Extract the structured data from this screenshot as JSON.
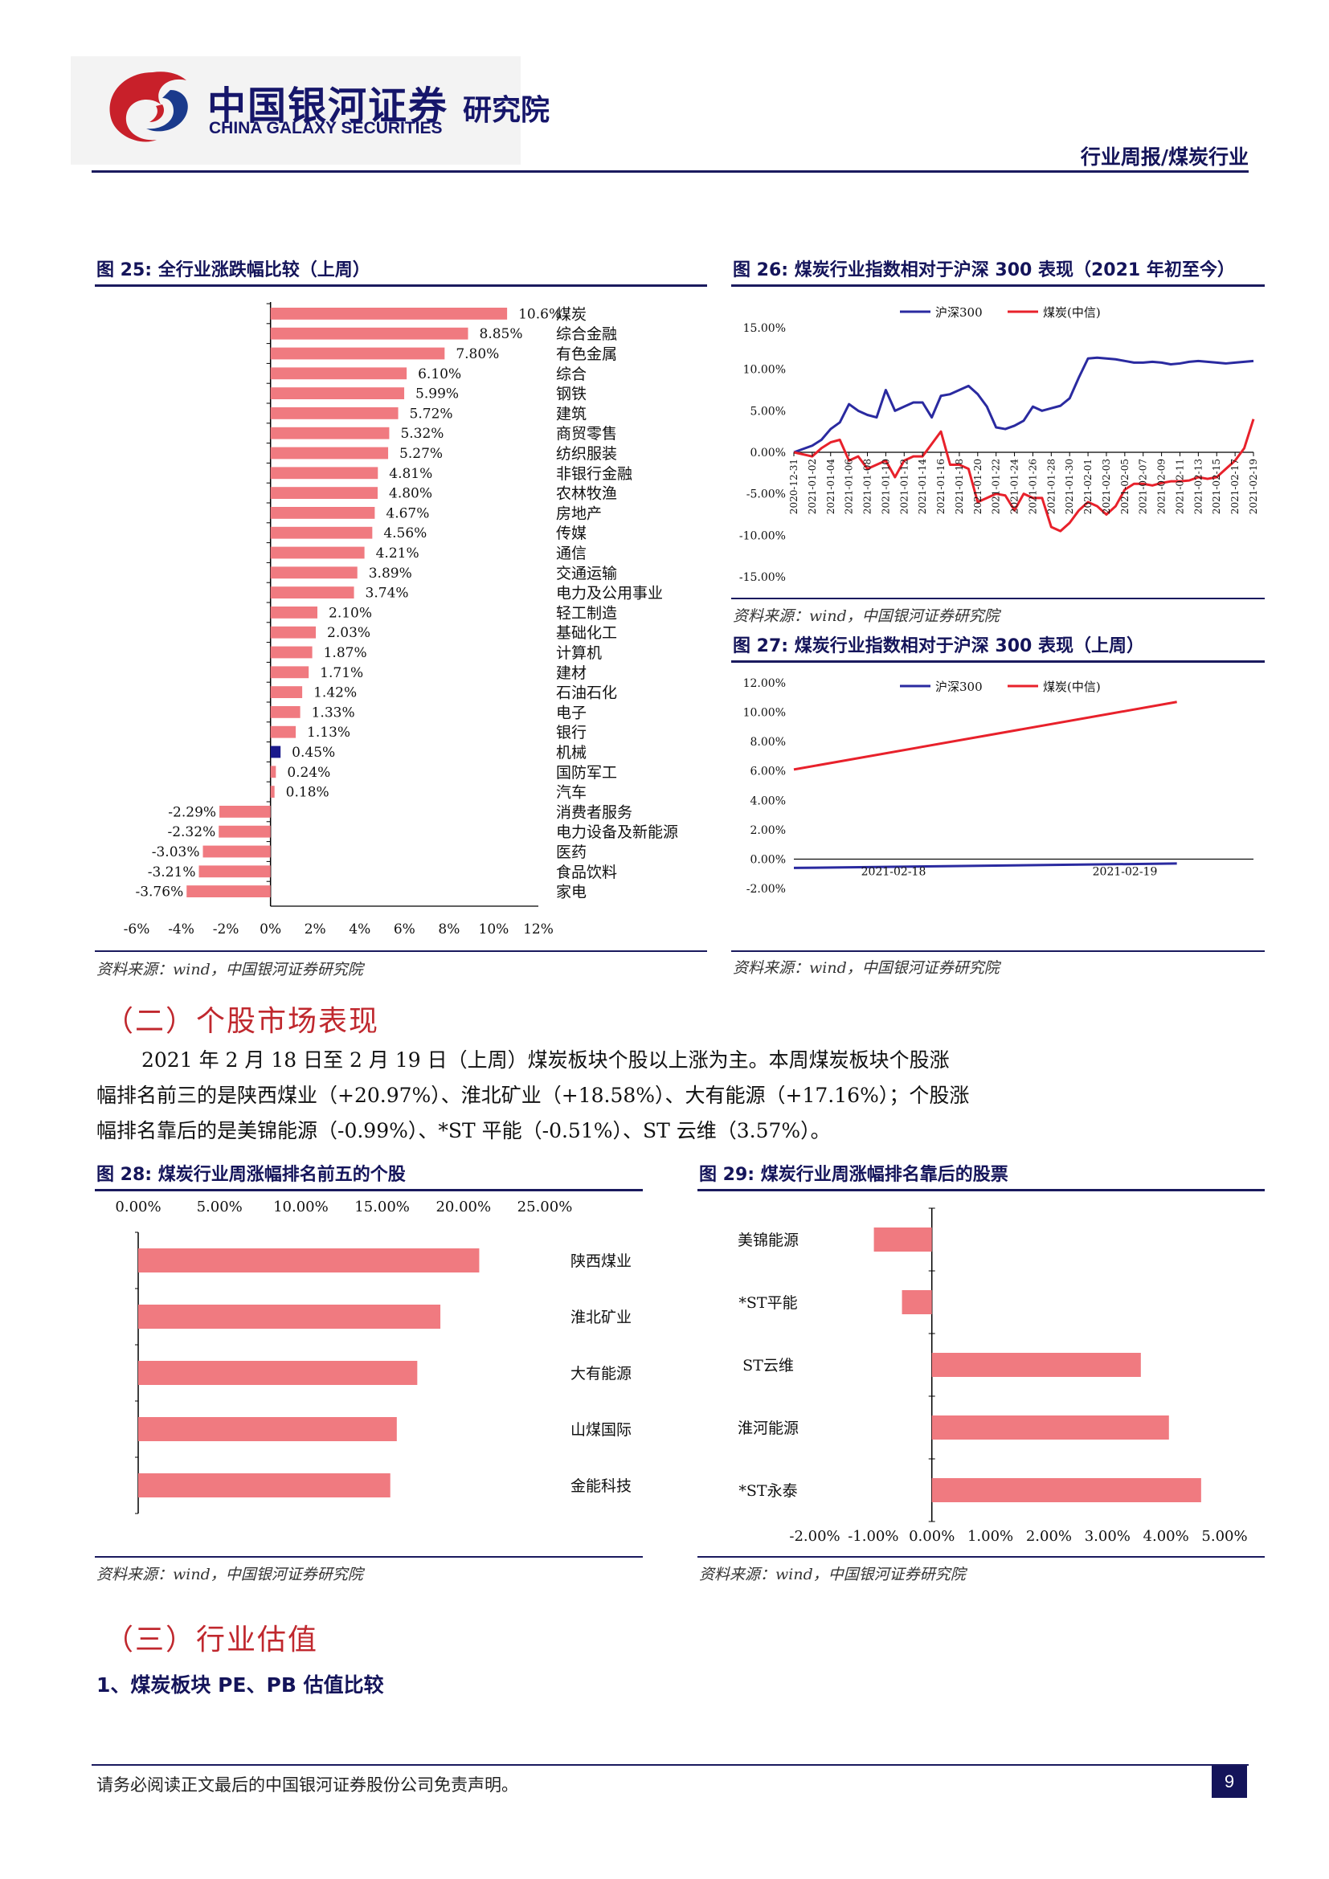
{
  "header": {
    "brand_cn": "中国银河证券",
    "brand_en": "CHINA GALAXY SECURITIES",
    "institute": "研究院",
    "report_type": "行业周报/煤炭行业"
  },
  "colors": {
    "bar": "#f07a80",
    "highlight": "#1a1a8c",
    "navy": "#14145a",
    "red_line": "#e8212b",
    "blue_line": "#2a2aa0"
  },
  "figures": {
    "fig25": {
      "title": "图 25:  全行业涨跌幅比较（上周）",
      "source": "资料来源：wind，中国银河证券研究院"
    },
    "fig26": {
      "title": "图 26:  煤炭行业指数相对于沪深 300 表现（2021 年初至今）",
      "source": "资料来源：wind，中国银河证券研究院"
    },
    "fig27": {
      "title": "图 27:  煤炭行业指数相对于沪深 300 表现（上周）",
      "source": "资料来源：wind，中国银河证券研究院"
    },
    "fig28": {
      "title": "图 28:  煤炭行业周涨幅排名前五的个股",
      "source": "资料来源：wind，中国银河证券研究院"
    },
    "fig29": {
      "title": "图 29:  煤炭行业周涨幅排名靠后的股票",
      "source": "资料来源：wind，中国银河证券研究院"
    }
  },
  "section2": {
    "heading": "（二）个股市场表现",
    "lines": [
      "2021 年 2 月 18 日至 2 月 19 日（上周）煤炭板块个股以上涨为主。本周煤炭板块个股涨",
      "幅排名前三的是陕西煤业（+20.97%）、淮北矿业（+18.58%）、大有能源（+17.16%）；个股涨",
      "幅排名靠后的是美锦能源（-0.99%）、*ST 平能（-0.51%）、ST 云维（3.57%）。"
    ]
  },
  "section3": {
    "heading": "（三）行业估值",
    "subheading": "1、煤炭板块 PE、PB 估值比较"
  },
  "footer": {
    "disclaimer": "请务必阅读正文最后的中国银河证券股份公司免责声明。",
    "page_number": "9"
  },
  "chart_data": [
    {
      "id": "fig25",
      "type": "bar",
      "orientation": "horizontal",
      "categories": [
        "煤炭",
        "综合金融",
        "有色金属",
        "综合",
        "钢铁",
        "建筑",
        "商贸零售",
        "纺织服装",
        "非银行金融",
        "农林牧渔",
        "房地产",
        "传媒",
        "通信",
        "交通运输",
        "电力及公用事业",
        "轻工制造",
        "基础化工",
        "计算机",
        "建材",
        "石油石化",
        "电子",
        "银行",
        "机械",
        "国防军工",
        "汽车",
        "消费者服务",
        "电力设备及新能源",
        "医药",
        "食品饮料",
        "家电"
      ],
      "values": [
        10.6,
        8.85,
        7.8,
        6.1,
        5.99,
        5.72,
        5.32,
        5.27,
        4.81,
        4.8,
        4.67,
        4.56,
        4.21,
        3.89,
        3.74,
        2.1,
        2.03,
        1.87,
        1.71,
        1.42,
        1.33,
        1.13,
        0.45,
        0.24,
        0.18,
        -2.29,
        -2.32,
        -3.03,
        -3.21,
        -3.76
      ],
      "labels": [
        "10.6%",
        "8.85%",
        "7.80%",
        "6.10%",
        "5.99%",
        "5.72%",
        "5.32%",
        "5.27%",
        "4.81%",
        "4.80%",
        "4.67%",
        "4.56%",
        "4.21%",
        "3.89%",
        "3.74%",
        "2.10%",
        "2.03%",
        "1.87%",
        "1.71%",
        "1.42%",
        "1.33%",
        "1.13%",
        "0.45%",
        "0.24%",
        "0.18%",
        "-2.29%",
        "-2.32%",
        "-3.03%",
        "-3.21%",
        "-3.76%"
      ],
      "highlight_index": 22,
      "xlim": [
        -6,
        12
      ],
      "x_ticks": [
        "-6%",
        "-4%",
        "-2%",
        "0%",
        "2%",
        "4%",
        "6%",
        "8%",
        "10%",
        "12%"
      ]
    },
    {
      "id": "fig26",
      "type": "line",
      "legend": [
        "沪深300",
        "煤炭(中信)"
      ],
      "ylim": [
        -15,
        15
      ],
      "y_ticks": [
        "15.00%",
        "10.00%",
        "5.00%",
        "0.00%",
        "-5.00%",
        "-10.00%",
        "-15.00%"
      ],
      "x_ticks": [
        "2020-12-31",
        "2021-01-02",
        "2021-01-04",
        "2021-01-06",
        "2021-01-08",
        "2021-01-10",
        "2021-01-12",
        "2021-01-14",
        "2021-01-16",
        "2021-01-18",
        "2021-01-20",
        "2021-01-22",
        "2021-01-24",
        "2021-01-26",
        "2021-01-28",
        "2021-01-30",
        "2021-02-01",
        "2021-02-03",
        "2021-02-05",
        "2021-02-07",
        "2021-02-09",
        "2021-02-11",
        "2021-02-13",
        "2021-02-15",
        "2021-02-17",
        "2021-02-19"
      ],
      "series": [
        {
          "name": "沪深300",
          "x": [
            0,
            2,
            3,
            4,
            5,
            6,
            7,
            8,
            9,
            10,
            11,
            12,
            13,
            14,
            15,
            16,
            17,
            18,
            19,
            20,
            21,
            22,
            23,
            24,
            25,
            26,
            27,
            28,
            29,
            30,
            31,
            32,
            33,
            34,
            35,
            36,
            37,
            38,
            39,
            40,
            41,
            42,
            43,
            44,
            45,
            46,
            47,
            48,
            49,
            50
          ],
          "values": [
            0,
            0.8,
            1.5,
            2.8,
            3.6,
            5.8,
            5.0,
            4.5,
            4.2,
            7.5,
            5.0,
            5.5,
            6.0,
            6.0,
            4.2,
            6.8,
            7.0,
            7.5,
            8.0,
            7.0,
            5.5,
            3.0,
            2.8,
            3.2,
            3.8,
            5.5,
            5.0,
            5.3,
            5.6,
            6.5,
            9.0,
            11.3,
            11.4,
            11.3,
            11.2,
            11.0,
            10.8,
            10.8,
            10.9,
            10.8,
            10.6,
            10.7,
            10.9,
            11.0,
            10.9,
            10.8,
            10.7,
            10.8,
            10.9,
            11.0
          ]
        },
        {
          "name": "煤炭(中信)",
          "x": [
            0,
            2,
            3,
            4,
            5,
            6,
            7,
            8,
            9,
            10,
            11,
            12,
            13,
            14,
            15,
            16,
            17,
            18,
            19,
            20,
            21,
            22,
            23,
            24,
            25,
            26,
            27,
            28,
            29,
            30,
            31,
            32,
            33,
            34,
            35,
            36,
            37,
            38,
            39,
            40,
            41,
            42,
            43,
            44,
            45,
            46,
            47,
            48,
            49,
            50
          ],
          "values": [
            0,
            -0.5,
            0.5,
            1.2,
            1.5,
            -1.0,
            -0.5,
            -2.0,
            -1.5,
            -1.0,
            -3.0,
            -1.0,
            -0.5,
            -0.5,
            1.0,
            2.5,
            -1.5,
            -1.5,
            -2.0,
            -6.0,
            -5.5,
            -5.0,
            -5.2,
            -7.0,
            -5.0,
            -5.5,
            -5.5,
            -9.0,
            -9.5,
            -8.5,
            -7.0,
            -6.0,
            -6.5,
            -7.5,
            -6.5,
            -4.5,
            -3.8,
            -3.8,
            -4.0,
            -3.7,
            -3.5,
            -3.5,
            -3.4,
            -3.0,
            -3.2,
            -3.0,
            -2.0,
            -1.0,
            0.5,
            4.0
          ]
        }
      ]
    },
    {
      "id": "fig27",
      "type": "line",
      "legend": [
        "沪深300",
        "煤炭(中信)"
      ],
      "ylim": [
        -2,
        12
      ],
      "y_ticks": [
        "12.00%",
        "10.00%",
        "8.00%",
        "6.00%",
        "4.00%",
        "2.00%",
        "0.00%",
        "-2.00%"
      ],
      "x_ticks": [
        "2021-02-18",
        "2021-02-19"
      ],
      "series": [
        {
          "name": "沪深300",
          "x": [
            0,
            1
          ],
          "values": [
            -0.6,
            -0.3
          ]
        },
        {
          "name": "煤炭(中信)",
          "x": [
            0,
            1
          ],
          "values": [
            6.1,
            10.7
          ]
        }
      ]
    },
    {
      "id": "fig28",
      "type": "bar",
      "orientation": "horizontal",
      "categories": [
        "陕西煤业",
        "淮北矿业",
        "大有能源",
        "山煤国际",
        "金能科技"
      ],
      "values": [
        20.97,
        18.58,
        17.16,
        15.9,
        15.5
      ],
      "xlim": [
        0,
        25
      ],
      "x_ticks": [
        "0.00%",
        "5.00%",
        "10.00%",
        "15.00%",
        "20.00%",
        "25.00%"
      ]
    },
    {
      "id": "fig29",
      "type": "bar",
      "orientation": "horizontal",
      "categories": [
        "美锦能源",
        "*ST平能",
        "ST云维",
        "淮河能源",
        "*ST永泰"
      ],
      "values": [
        -0.99,
        -0.51,
        3.57,
        4.05,
        4.6
      ],
      "xlim": [
        -2,
        5
      ],
      "x_ticks": [
        "-2.00%",
        "-1.00%",
        "0.00%",
        "1.00%",
        "2.00%",
        "3.00%",
        "4.00%",
        "5.00%"
      ]
    }
  ]
}
